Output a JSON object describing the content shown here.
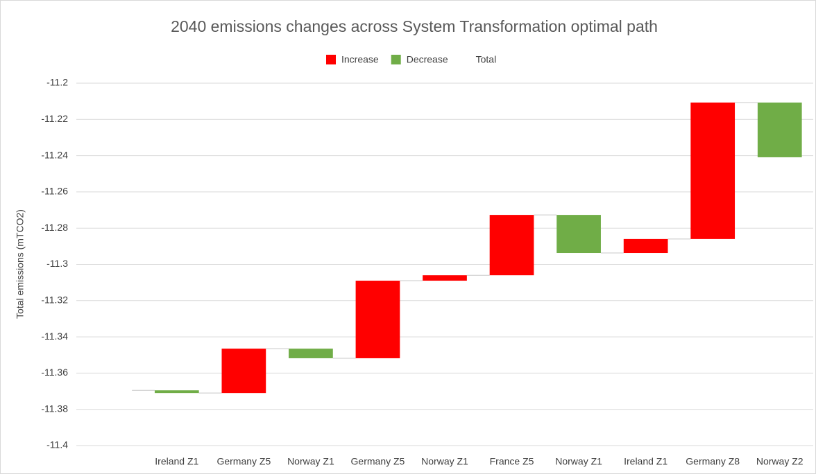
{
  "chart_data": {
    "type": "waterfall",
    "title": "2040 emissions changes across System Transformation optimal path",
    "y_label": "Total emissions (mTCO2)",
    "categories": [
      null,
      "Ireland Z1",
      "Germany Z5",
      "Norway Z1",
      "Germany Z5",
      "Norway Z1",
      "France Z5",
      "Norway Z1",
      "Ireland Z1",
      "Germany Z8",
      "Norway Z2"
    ],
    "series": [
      {
        "name": "Increase",
        "color": "#ff0000",
        "values": [
          null,
          null,
          0.0245,
          null,
          0.0428,
          0.003,
          0.0333,
          null,
          0.0077,
          0.0753,
          null
        ]
      },
      {
        "name": "Decrease",
        "color": "#70ad47",
        "values": [
          null,
          -0.0015,
          null,
          -0.0053,
          null,
          null,
          null,
          -0.021,
          null,
          null,
          -0.0302
        ]
      },
      {
        "name": "Total",
        "color": "transparent",
        "values": [
          -11.3695,
          null,
          null,
          null,
          null,
          null,
          null,
          null,
          null,
          null,
          null
        ]
      }
    ],
    "ylim": [
      -11.4,
      -11.2
    ],
    "yticks": [
      -11.4,
      -11.38,
      -11.36,
      -11.34,
      -11.32,
      -11.3,
      -11.28,
      -11.26,
      -11.24,
      -11.22,
      -11.2
    ],
    "grid": true
  }
}
